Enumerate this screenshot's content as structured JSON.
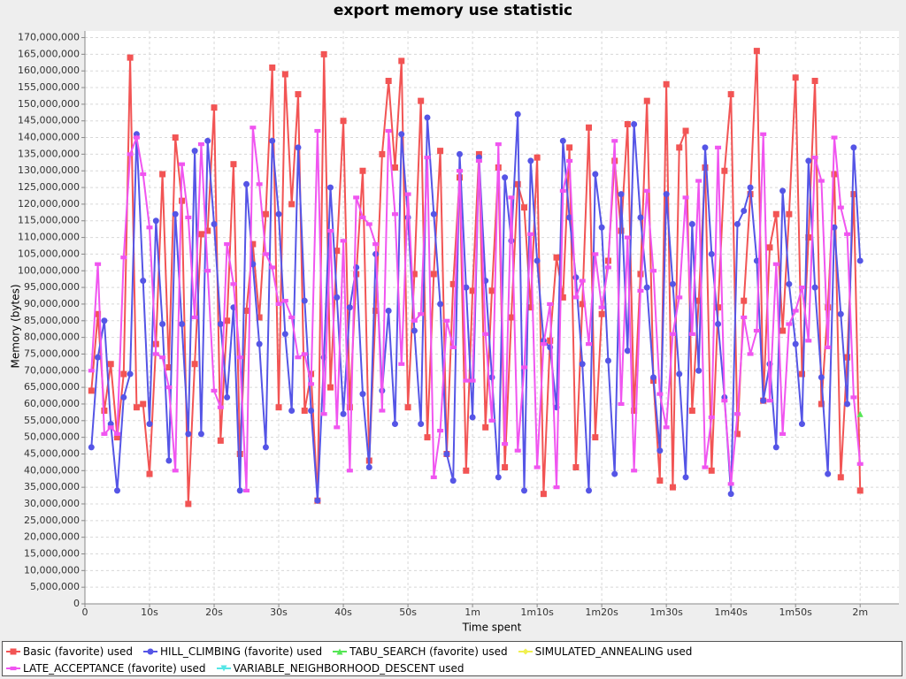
{
  "chart_data": {
    "type": "line",
    "title": "export memory use statistic",
    "x_label": "Time spent",
    "y_label": "Memory (bytes)",
    "grid": true,
    "legend": "bottom",
    "xlim": [
      0,
      126
    ],
    "ylim": [
      0,
      172000000
    ],
    "xticks": [
      0,
      {
        "value": 10,
        "label": "10s"
      },
      {
        "value": 20,
        "label": "20s"
      },
      {
        "value": 30,
        "label": "30s"
      },
      {
        "value": 40,
        "label": "40s"
      },
      {
        "value": 50,
        "label": "50s"
      },
      {
        "value": 60,
        "label": "1m"
      },
      {
        "value": 70,
        "label": "1m10s"
      },
      {
        "value": 80,
        "label": "1m20s"
      },
      {
        "value": 90,
        "label": "1m30s"
      },
      {
        "value": 100,
        "label": "1m40s"
      },
      {
        "value": 110,
        "label": "1m50s"
      },
      {
        "value": 120,
        "label": "2m"
      }
    ],
    "yticks": [
      0,
      {
        "value": 5000000,
        "label": "5,000,000"
      },
      {
        "value": 10000000,
        "label": "10,000,000"
      },
      {
        "value": 15000000,
        "label": "15,000,000"
      },
      {
        "value": 20000000,
        "label": "20,000,000"
      },
      {
        "value": 25000000,
        "label": "25,000,000"
      },
      {
        "value": 30000000,
        "label": "30,000,000"
      },
      {
        "value": 35000000,
        "label": "35,000,000"
      },
      {
        "value": 40000000,
        "label": "40,000,000"
      },
      {
        "value": 45000000,
        "label": "45,000,000"
      },
      {
        "value": 50000000,
        "label": "50,000,000"
      },
      {
        "value": 55000000,
        "label": "55,000,000"
      },
      {
        "value": 60000000,
        "label": "60,000,000"
      },
      {
        "value": 65000000,
        "label": "65,000,000"
      },
      {
        "value": 70000000,
        "label": "70,000,000"
      },
      {
        "value": 75000000,
        "label": "75,000,000"
      },
      {
        "value": 80000000,
        "label": "80,000,000"
      },
      {
        "value": 85000000,
        "label": "85,000,000"
      },
      {
        "value": 90000000,
        "label": "90,000,000"
      },
      {
        "value": 95000000,
        "label": "95,000,000"
      },
      {
        "value": 100000000,
        "label": "100,000,000"
      },
      {
        "value": 105000000,
        "label": "105,000,000"
      },
      {
        "value": 110000000,
        "label": "110,000,000"
      },
      {
        "value": 115000000,
        "label": "115,000,000"
      },
      {
        "value": 120000000,
        "label": "120,000,000"
      },
      {
        "value": 125000000,
        "label": "125,000,000"
      },
      {
        "value": 130000000,
        "label": "130,000,000"
      },
      {
        "value": 135000000,
        "label": "135,000,000"
      },
      {
        "value": 140000000,
        "label": "140,000,000"
      },
      {
        "value": 145000000,
        "label": "145,000,000"
      },
      {
        "value": 150000000,
        "label": "150,000,000"
      },
      {
        "value": 155000000,
        "label": "155,000,000"
      },
      {
        "value": 160000000,
        "label": "160,000,000"
      },
      {
        "value": 165000000,
        "label": "165,000,000"
      },
      {
        "value": 170000000,
        "label": "170,000,000"
      }
    ],
    "x": [
      1,
      2,
      3,
      4,
      5,
      6,
      7,
      8,
      9,
      10,
      11,
      12,
      13,
      14,
      15,
      16,
      17,
      18,
      19,
      20,
      21,
      22,
      23,
      24,
      25,
      26,
      27,
      28,
      29,
      30,
      31,
      32,
      33,
      34,
      35,
      36,
      37,
      38,
      39,
      40,
      41,
      42,
      43,
      44,
      45,
      46,
      47,
      48,
      49,
      50,
      51,
      52,
      53,
      54,
      55,
      56,
      57,
      58,
      59,
      60,
      61,
      62,
      63,
      64,
      65,
      66,
      67,
      68,
      69,
      70,
      71,
      72,
      73,
      74,
      75,
      76,
      77,
      78,
      79,
      80,
      81,
      82,
      83,
      84,
      85,
      86,
      87,
      88,
      89,
      90,
      91,
      92,
      93,
      94,
      95,
      96,
      97,
      98,
      99,
      100,
      101,
      102,
      103,
      104,
      105,
      106,
      107,
      108,
      109,
      110,
      111,
      112,
      113,
      114,
      115,
      116,
      117,
      118,
      119,
      120
    ],
    "series": [
      {
        "name": "Basic (favorite) used",
        "color": "#f25454",
        "marker": "square",
        "values": [
          64000000,
          87000000,
          58000000,
          72000000,
          50000000,
          69000000,
          164000000,
          59000000,
          60000000,
          39000000,
          78000000,
          129000000,
          71000000,
          140000000,
          121000000,
          30000000,
          72000000,
          111000000,
          112000000,
          149000000,
          49000000,
          85000000,
          132000000,
          45000000,
          88000000,
          108000000,
          86000000,
          117000000,
          161000000,
          59000000,
          159000000,
          120000000,
          153000000,
          58000000,
          69000000,
          31000000,
          165000000,
          65000000,
          106000000,
          145000000,
          59000000,
          99000000,
          130000000,
          43000000,
          88000000,
          135000000,
          157000000,
          131000000,
          163000000,
          59000000,
          99000000,
          151000000,
          50000000,
          99000000,
          136000000,
          45000000,
          96000000,
          128000000,
          40000000,
          94000000,
          135000000,
          53000000,
          94000000,
          131000000,
          41000000,
          86000000,
          126000000,
          119000000,
          89000000,
          134000000,
          33000000,
          79000000,
          104000000,
          92000000,
          137000000,
          41000000,
          90000000,
          143000000,
          50000000,
          87000000,
          103000000,
          133000000,
          112000000,
          144000000,
          58000000,
          99000000,
          151000000,
          67000000,
          37000000,
          156000000,
          35000000,
          137000000,
          142000000,
          58000000,
          91000000,
          131000000,
          40000000,
          89000000,
          130000000,
          153000000,
          51000000,
          91000000,
          123000000,
          166000000,
          61000000,
          107000000,
          117000000,
          82000000,
          117000000,
          158000000,
          69000000,
          110000000,
          157000000,
          60000000,
          89000000,
          129000000,
          38000000,
          74000000,
          123000000,
          34000000
        ]
      },
      {
        "name": "HILL_CLIMBING (favorite) used",
        "color": "#5555e6",
        "marker": "circle",
        "values": [
          47000000,
          74000000,
          85000000,
          54000000,
          34000000,
          62000000,
          69000000,
          141000000,
          97000000,
          54000000,
          115000000,
          84000000,
          43000000,
          117000000,
          84000000,
          51000000,
          136000000,
          51000000,
          139000000,
          114000000,
          84000000,
          62000000,
          89000000,
          34000000,
          126000000,
          102000000,
          78000000,
          47000000,
          139000000,
          117000000,
          81000000,
          58000000,
          137000000,
          91000000,
          58000000,
          31000000,
          74000000,
          125000000,
          92000000,
          57000000,
          89000000,
          101000000,
          63000000,
          41000000,
          105000000,
          64000000,
          88000000,
          54000000,
          141000000,
          116000000,
          82000000,
          54000000,
          146000000,
          117000000,
          90000000,
          45000000,
          37000000,
          135000000,
          95000000,
          56000000,
          134000000,
          97000000,
          68000000,
          38000000,
          128000000,
          109000000,
          147000000,
          34000000,
          133000000,
          103000000,
          79000000,
          77000000,
          59000000,
          139000000,
          116000000,
          98000000,
          72000000,
          34000000,
          129000000,
          113000000,
          73000000,
          39000000,
          123000000,
          76000000,
          144000000,
          116000000,
          95000000,
          68000000,
          46000000,
          123000000,
          96000000,
          69000000,
          38000000,
          114000000,
          70000000,
          137000000,
          105000000,
          84000000,
          62000000,
          33000000,
          114000000,
          118000000,
          125000000,
          103000000,
          61000000,
          72000000,
          47000000,
          124000000,
          96000000,
          78000000,
          54000000,
          133000000,
          95000000,
          68000000,
          39000000,
          113000000,
          87000000,
          60000000,
          137000000,
          103000000
        ]
      },
      {
        "name": "TABU_SEARCH (favorite) used",
        "color": "#55e655",
        "marker": "triangle",
        "x": [
          120
        ],
        "values": [
          57000000
        ]
      },
      {
        "name": "SIMULATED_ANNEALING used",
        "color": "#f0f050",
        "marker": "diamond",
        "x": [],
        "values": []
      },
      {
        "name": "LATE_ACCEPTANCE (favorite) used",
        "color": "#f055f0",
        "marker": "bar",
        "values": [
          70000000,
          102000000,
          51000000,
          53000000,
          51000000,
          104000000,
          135000000,
          140000000,
          129000000,
          113000000,
          75000000,
          74000000,
          65000000,
          40000000,
          132000000,
          116000000,
          86000000,
          138000000,
          100000000,
          64000000,
          59000000,
          108000000,
          96000000,
          74000000,
          34000000,
          143000000,
          126000000,
          105000000,
          101000000,
          90000000,
          91000000,
          86000000,
          74000000,
          75000000,
          66000000,
          142000000,
          57000000,
          112000000,
          53000000,
          109000000,
          40000000,
          122000000,
          116000000,
          114000000,
          108000000,
          58000000,
          142000000,
          117000000,
          72000000,
          123000000,
          85000000,
          87000000,
          134000000,
          38000000,
          52000000,
          85000000,
          77000000,
          130000000,
          67000000,
          67000000,
          133000000,
          81000000,
          55000000,
          138000000,
          48000000,
          122000000,
          46000000,
          71000000,
          111000000,
          41000000,
          78000000,
          90000000,
          35000000,
          124000000,
          133000000,
          92000000,
          97000000,
          78000000,
          105000000,
          89000000,
          101000000,
          139000000,
          60000000,
          110000000,
          40000000,
          94000000,
          124000000,
          100000000,
          63000000,
          53000000,
          81000000,
          92000000,
          122000000,
          81000000,
          127000000,
          41000000,
          56000000,
          137000000,
          61000000,
          36000000,
          57000000,
          86000000,
          75000000,
          82000000,
          141000000,
          61000000,
          102000000,
          51000000,
          84000000,
          88000000,
          95000000,
          79000000,
          134000000,
          127000000,
          77000000,
          140000000,
          119000000,
          111000000,
          62000000,
          42000000
        ]
      },
      {
        "name": "VARIABLE_NEIGHBORHOOD_DESCENT used",
        "color": "#55e6e6",
        "marker": "down-triangle",
        "x": [],
        "values": []
      }
    ]
  }
}
